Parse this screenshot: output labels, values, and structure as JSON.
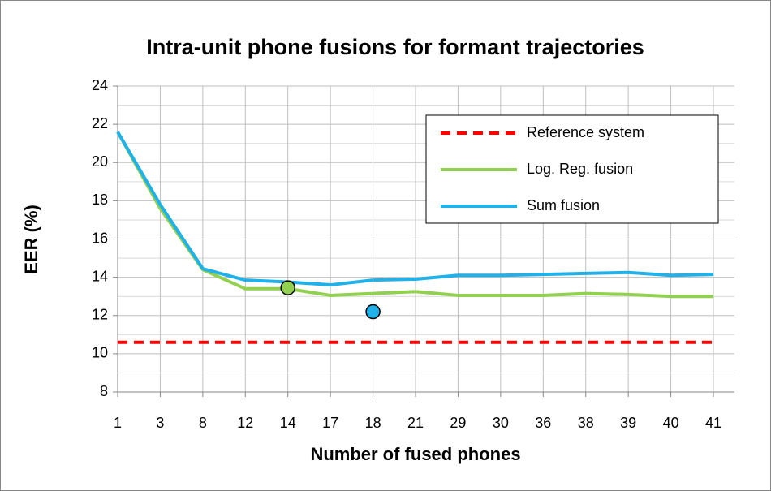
{
  "chart_data": {
    "type": "line",
    "title": "Intra-unit phone fusions for formant trajectories",
    "x_label": "Number of fused phones",
    "y_label": "EER (%)",
    "categories": [
      1,
      3,
      8,
      12,
      14,
      17,
      18,
      21,
      29,
      30,
      36,
      38,
      39,
      40,
      41
    ],
    "series": [
      {
        "name": "Reference system",
        "color": "#ff0000",
        "dashed": true,
        "values": [
          10.6,
          10.6,
          10.6,
          10.6,
          10.6,
          10.6,
          10.6,
          10.6,
          10.6,
          10.6,
          10.6,
          10.6,
          10.6,
          10.6,
          10.6
        ]
      },
      {
        "name": "Log. Reg. fusion",
        "color": "#92d050",
        "values": [
          21.6,
          17.6,
          14.4,
          13.4,
          13.4,
          13.05,
          13.15,
          13.25,
          13.05,
          13.05,
          13.05,
          13.15,
          13.1,
          13.0,
          13.0
        ]
      },
      {
        "name": "Sum fusion",
        "color": "#1fb1e8",
        "values": [
          21.6,
          17.8,
          14.45,
          13.85,
          13.75,
          13.6,
          13.85,
          13.9,
          14.1,
          14.1,
          14.15,
          14.2,
          14.25,
          14.1,
          14.15
        ]
      },
      {
        "color": "#92d050",
        "marker": true,
        "values": [
          null,
          null,
          null,
          null,
          13.45,
          null,
          null,
          null,
          null,
          null,
          null,
          null,
          null,
          null,
          null
        ]
      },
      {
        "color": "#1fb1e8",
        "marker": true,
        "values": [
          null,
          null,
          null,
          null,
          null,
          null,
          12.2,
          null,
          null,
          null,
          null,
          null,
          null,
          null,
          null
        ]
      }
    ],
    "ylim": [
      8,
      24
    ],
    "yticks": [
      8,
      10,
      12,
      14,
      16,
      18,
      20,
      22,
      24
    ],
    "minor_yticks": [
      9,
      11,
      13,
      15,
      17,
      19,
      21,
      23
    ],
    "grid": true,
    "legend": "top-right"
  }
}
